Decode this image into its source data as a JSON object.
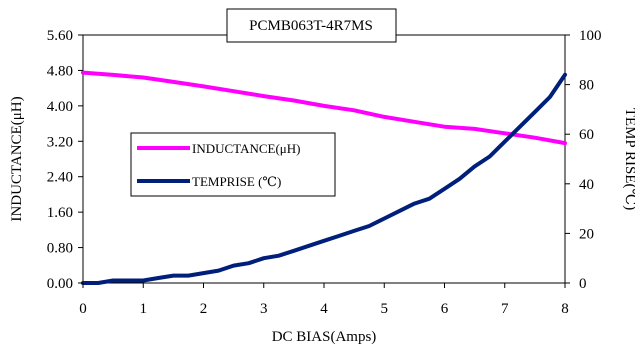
{
  "chart_data": {
    "type": "line",
    "title": "PCMB063T-4R7MS",
    "xlabel": "DC BIAS(Amps)",
    "ylabel": "INDUCTANCE(μH)",
    "y2label": "TEMP RISE(℃)",
    "xlim": [
      0,
      8
    ],
    "ylim": [
      0,
      5.6
    ],
    "y2lim": [
      0,
      100
    ],
    "x_ticks": [
      "0",
      "1",
      "2",
      "3",
      "4",
      "5",
      "6",
      "7",
      "8"
    ],
    "y_ticks": [
      "0.00",
      "0.80",
      "1.60",
      "2.40",
      "3.20",
      "4.00",
      "4.80",
      "5.60"
    ],
    "y2_ticks": [
      "0",
      "20",
      "40",
      "60",
      "80",
      "100"
    ],
    "grid": false,
    "legend_position": "center-left",
    "series": [
      {
        "name": "INDUCTANCE(μH)",
        "axis": "left",
        "color": "#ff00ff",
        "x": [
          0,
          0.5,
          1,
          1.5,
          2,
          2.5,
          3,
          3.5,
          4,
          4.5,
          5,
          5.5,
          6,
          6.5,
          7,
          7.5,
          8
        ],
        "values": [
          4.75,
          4.7,
          4.64,
          4.54,
          4.44,
          4.33,
          4.22,
          4.12,
          4.0,
          3.9,
          3.75,
          3.64,
          3.53,
          3.48,
          3.38,
          3.28,
          3.16
        ]
      },
      {
        "name": "TEMPRISE (℃)",
        "axis": "right",
        "color": "#001f7a",
        "x": [
          0,
          0.25,
          0.5,
          0.75,
          1,
          1.25,
          1.5,
          1.75,
          2,
          2.25,
          2.5,
          2.75,
          3,
          3.25,
          3.5,
          3.75,
          4,
          4.25,
          4.5,
          4.75,
          5,
          5.25,
          5.5,
          5.75,
          6,
          6.25,
          6.5,
          6.75,
          7,
          7.25,
          7.5,
          7.75,
          8
        ],
        "values": [
          0,
          0,
          1,
          1,
          1,
          2,
          3,
          3,
          4,
          5,
          7,
          8,
          10,
          11,
          13,
          15,
          17,
          19,
          21,
          23,
          26,
          29,
          32,
          34,
          38,
          42,
          47,
          51,
          57,
          63,
          69,
          75,
          84
        ]
      }
    ]
  }
}
